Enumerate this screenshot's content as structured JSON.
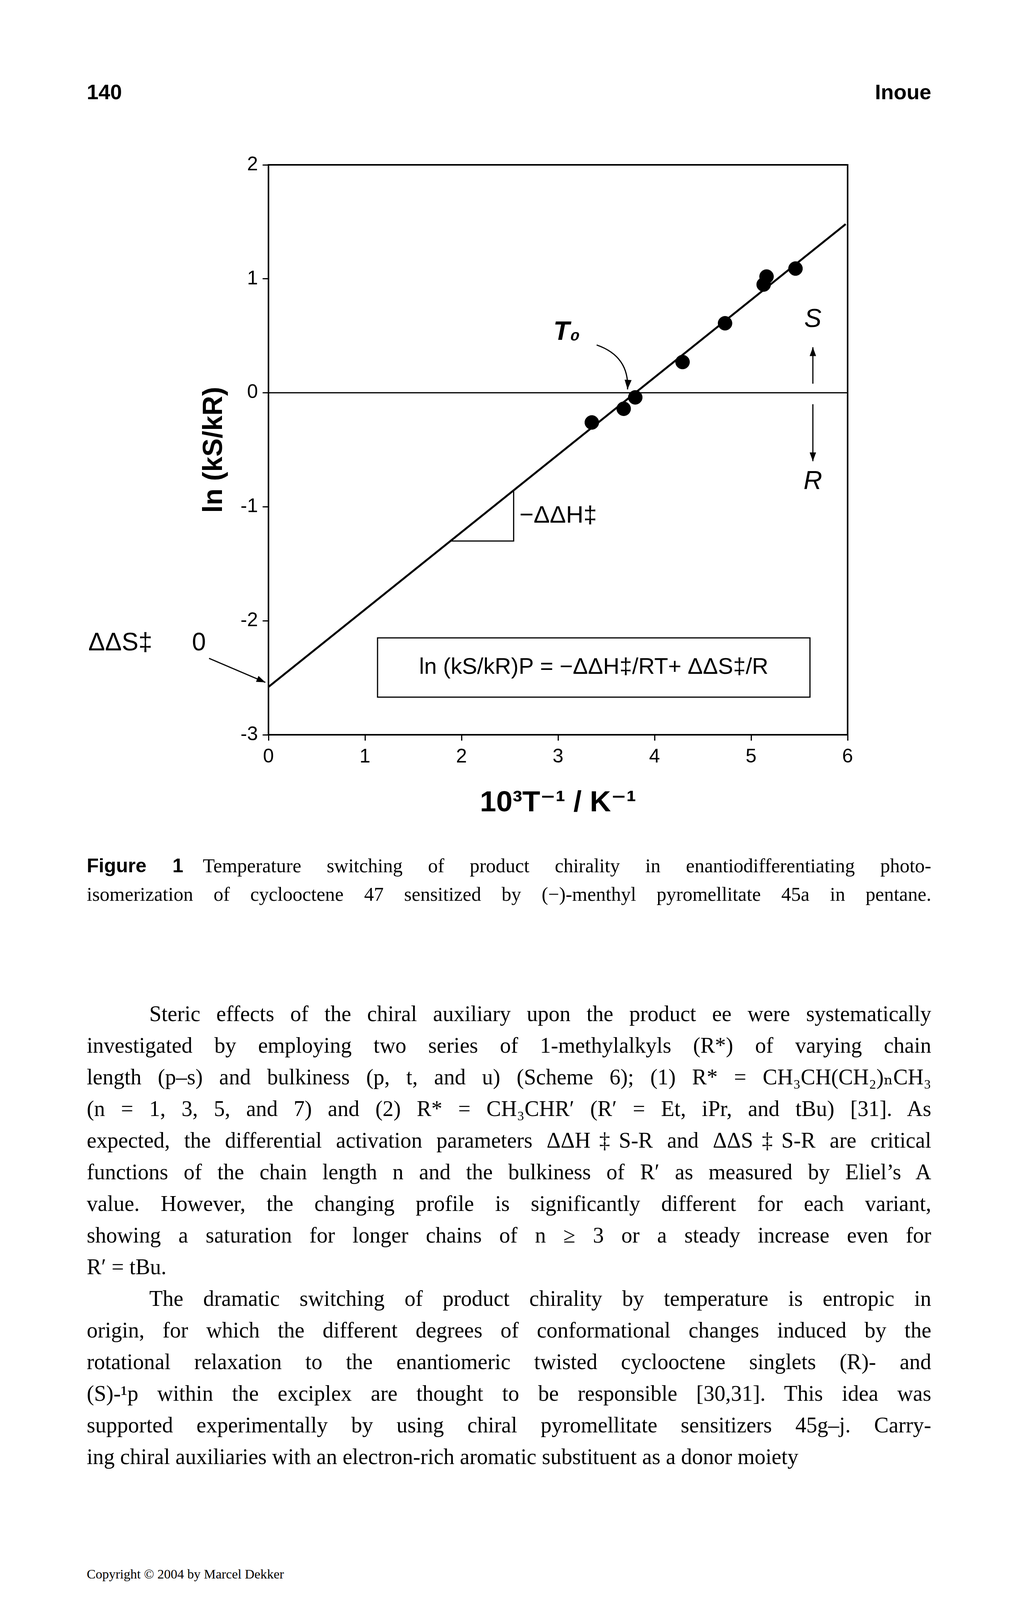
{
  "header": {
    "page": "140",
    "author": "Inoue"
  },
  "chart_data": {
    "type": "scatter",
    "x_label": "10³T⁻¹ / K⁻¹",
    "y_label": "ln (kS/kR)",
    "xlim": [
      0,
      6
    ],
    "xticks": [
      0,
      1,
      2,
      3,
      4,
      5,
      6
    ],
    "ylim": [
      -3,
      2
    ],
    "yticks": [
      -3,
      -2,
      -1,
      0,
      1,
      2
    ],
    "grid": false,
    "reference_y": 0,
    "series": [
      {
        "type": "scatter",
        "color": "#000000",
        "marker": "circle",
        "x": [
          3.35,
          3.68,
          3.8,
          4.29,
          4.73,
          5.13,
          5.16,
          5.46
        ],
        "values": [
          -0.26,
          -0.14,
          -0.04,
          0.27,
          0.61,
          0.95,
          1.02,
          1.09
        ]
      },
      {
        "type": "line",
        "color": "#000000",
        "line_style": "solid",
        "x": [
          0,
          5.98
        ],
        "values": [
          -2.58,
          1.48
        ]
      }
    ],
    "annotations": {
      "t0": "T₀",
      "s": "S",
      "r": "R",
      "slope": "−ΔΔH‡",
      "equation": "ln (kS/kR)P = −ΔΔH‡/RT+ ΔΔS‡/R",
      "intercept_label": "ΔΔS‡",
      "intercept_value": "0"
    }
  },
  "caption": {
    "label": "Figure 1",
    "lines": [
      "Temperature switching of product chirality in enantiodifferentiating photo-",
      "isomerization of cyclooctene 47 sensitized by (−)-menthyl pyromellitate 45a in pentane."
    ]
  },
  "body": {
    "paragraphs": [
      [
        "Steric effects of the chiral auxiliary upon the product ee were systematically",
        "investigated by employing two series of 1-methylalkyls (R*) of varying chain",
        "length (p–s) and bulkiness (p, t, and u) (Scheme 6); (1) R* = CH₃CH(CH₂)ₙCH₃",
        "(n = 1, 3, 5, and 7) and (2) R* = CH₃CHR′ (R′ = Et, iPr, and tBu) [31]. As",
        "expected, the differential activation parameters ΔΔH‡S-R and ΔΔS‡S-R are critical",
        "functions of the chain length n and the bulkiness of R′ as measured by Eliel’s A",
        "value. However, the changing profile is significantly different for each variant,",
        "showing a saturation for longer chains of n ≥ 3 or a steady increase even for",
        "R′ = tBu."
      ],
      [
        "The dramatic switching of product chirality by temperature is entropic in",
        "origin, for which the different degrees of conformational changes induced by the",
        "rotational relaxation to the enantiomeric twisted cyclooctene singlets (R)- and",
        "(S)-¹p within the exciplex are thought to be responsible [30,31]. This idea was",
        "supported experimentally by using chiral pyromellitate sensitizers 45g–j. Carry-",
        "ing chiral auxiliaries with an electron-rich aromatic substituent as a donor moiety"
      ]
    ]
  },
  "footer": "Copyright © 2004 by Marcel Dekker"
}
